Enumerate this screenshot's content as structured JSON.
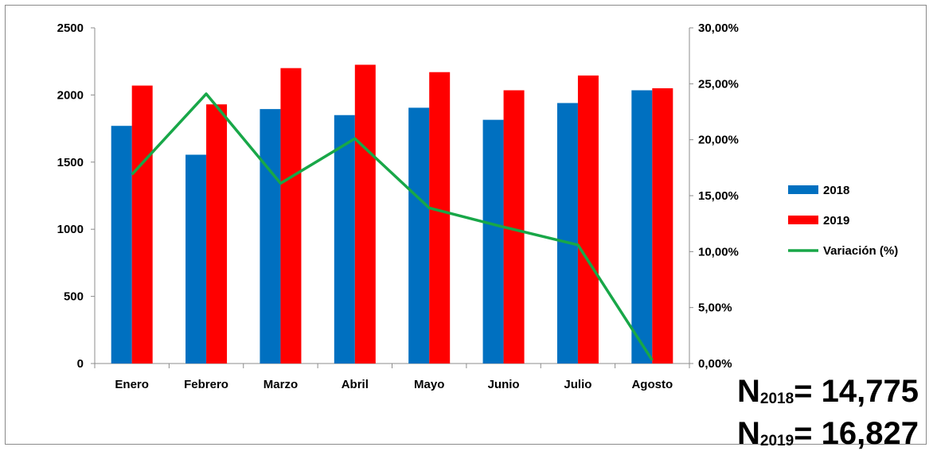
{
  "chart_data": {
    "type": "bar",
    "categories": [
      "Enero",
      "Febrero",
      "Marzo",
      "Abril",
      "Mayo",
      "Junio",
      "Julio",
      "Agosto"
    ],
    "series": [
      {
        "name": "2018",
        "type": "bar",
        "axis": "left",
        "color": "#0070C0",
        "values": [
          1770,
          1555,
          1895,
          1850,
          1905,
          1815,
          1940,
          2035
        ]
      },
      {
        "name": "2019",
        "type": "bar",
        "axis": "left",
        "color": "#FF0000",
        "values": [
          2070,
          1930,
          2200,
          2225,
          2170,
          2035,
          2145,
          2050
        ]
      },
      {
        "name": "Variación (%)",
        "type": "line",
        "axis": "right",
        "color": "#18A748",
        "values": [
          16.9,
          24.1,
          16.1,
          20.1,
          13.9,
          12.2,
          10.6,
          0.3
        ]
      }
    ],
    "y_left": {
      "min": 0,
      "max": 2500,
      "step": 500,
      "tick_labels": [
        "0",
        "500",
        "1000",
        "1500",
        "2000",
        "2500"
      ]
    },
    "y_right": {
      "min": 0,
      "max": 30,
      "step": 5,
      "tick_labels": [
        "0,00%",
        "5,00%",
        "10,00%",
        "15,00%",
        "20,00%",
        "25,00%",
        "30,00%"
      ]
    },
    "legend": {
      "position": "right",
      "entries": [
        {
          "label": "2018",
          "color": "#0070C0",
          "shape": "box"
        },
        {
          "label": "2019",
          "color": "#FF0000",
          "shape": "box"
        },
        {
          "label": "Variación (%)",
          "color": "#18A748",
          "shape": "line"
        }
      ]
    },
    "grid": false,
    "xlabel": "",
    "ylabel": "",
    "title": ""
  },
  "annotations": {
    "n2018": {
      "letter": "N",
      "sub": "2018",
      "value": "= 14,775"
    },
    "n2019": {
      "letter": "N",
      "sub": "2019",
      "value": "= 16,827"
    }
  }
}
